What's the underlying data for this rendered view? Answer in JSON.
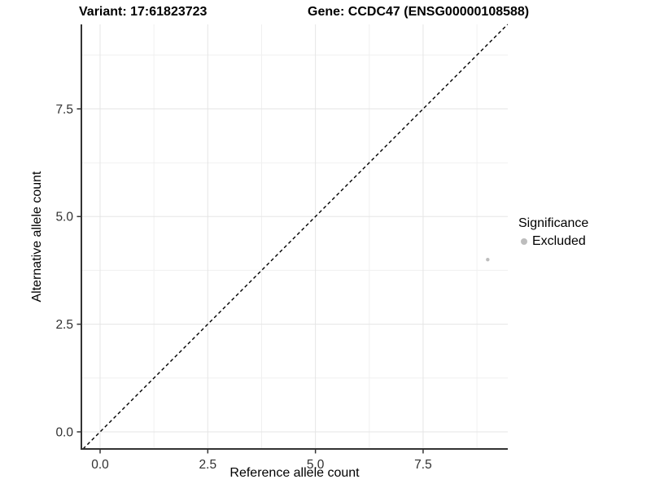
{
  "header": {
    "variant_title": "Variant: 17:61823723",
    "gene_title": "Gene: CCDC47 (ENSG00000108588)"
  },
  "axes": {
    "x_label": "Reference allele count",
    "y_label": "Alternative allele count"
  },
  "legend": {
    "title": "Significance",
    "items": [
      {
        "label": "Excluded",
        "color": "#bdbdbd"
      }
    ]
  },
  "chart_data": {
    "type": "scatter",
    "title": "Variant: 17:61823723 / Gene: CCDC47 (ENSG00000108588)",
    "xlabel": "Reference allele count",
    "ylabel": "Alternative allele count",
    "series": [
      {
        "name": "Excluded",
        "color": "#bdbdbd",
        "points": [
          {
            "x": 9,
            "y": 4
          }
        ]
      }
    ],
    "reference_line": {
      "type": "identity_y_equals_x",
      "style": "dashed",
      "color": "#000000"
    },
    "x_ticks": [
      0.0,
      2.5,
      5.0,
      7.5
    ],
    "y_ticks": [
      0.0,
      2.5,
      5.0,
      7.5
    ],
    "x_tick_labels": [
      "0.0",
      "2.5",
      "5.0",
      "7.5"
    ],
    "y_tick_labels": [
      "0.0",
      "2.5",
      "5.0",
      "7.5"
    ],
    "x_minor_ticks": [
      1.25,
      3.75,
      6.25,
      8.75
    ],
    "y_minor_ticks": [
      1.25,
      3.75,
      6.25,
      8.75
    ],
    "xlim": [
      -0.435,
      9.466
    ],
    "ylim": [
      -0.397,
      9.462
    ],
    "grid": true,
    "legend_position": "right"
  },
  "colors": {
    "background": "#ffffff",
    "major_grid": "#e5e5e5",
    "minor_grid": "#f0f0f0",
    "axis_line": "#333333",
    "tick_mark": "#333333",
    "tick_label": "#303030",
    "reference_line": "#000000",
    "point": "#bdbdbd",
    "text": "#000000"
  }
}
